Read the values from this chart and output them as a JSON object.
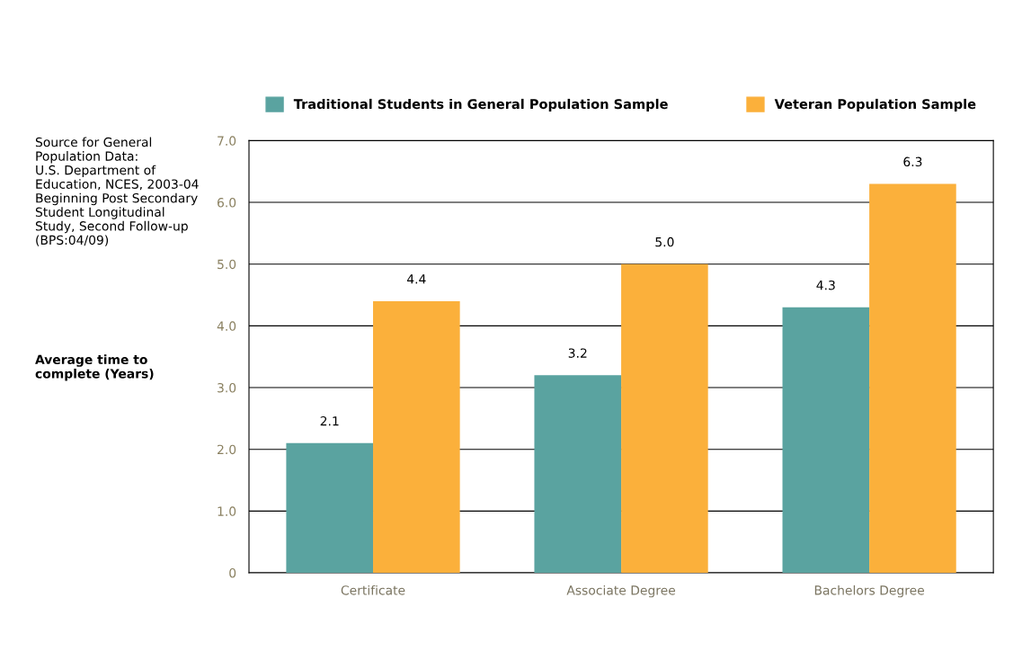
{
  "chart_data": {
    "type": "bar",
    "categories": [
      "Certificate",
      "Associate Degree",
      "Bachelors Degree"
    ],
    "series": [
      {
        "name": "Traditional Students in General Population Sample",
        "color": "#5aa3a0",
        "values": [
          2.1,
          3.2,
          4.3
        ]
      },
      {
        "name": "Veteran Population Sample",
        "color": "#fbb03b",
        "values": [
          4.4,
          5.0,
          6.3
        ]
      }
    ],
    "annotations": [
      "Source for General\nPopulation Data:\nU.S. Department of\nEducation, NCES, 2003-04\nBeginning Post Secondary\nStudent Longitudinal\nStudy, Second Follow-up\n(BPS:04/09)",
      "Average time to\ncomplete (Years)"
    ],
    "ylim": [
      0,
      7
    ],
    "yticks": [
      0,
      {
        "value": 1,
        "label": "1.0"
      },
      {
        "value": 2,
        "label": "2.0"
      },
      {
        "value": 3,
        "label": "3.0"
      },
      {
        "value": 4,
        "label": "4.0"
      },
      {
        "value": 5,
        "label": "5.0"
      },
      {
        "value": 6,
        "label": "6.0"
      },
      {
        "value": 7,
        "label": "7.0"
      }
    ],
    "value_labels": [
      [
        "2.1",
        "3.2",
        "4.3"
      ],
      [
        "4.4",
        "5.0",
        "6.3"
      ]
    ],
    "grid": "y",
    "legend": "top"
  }
}
